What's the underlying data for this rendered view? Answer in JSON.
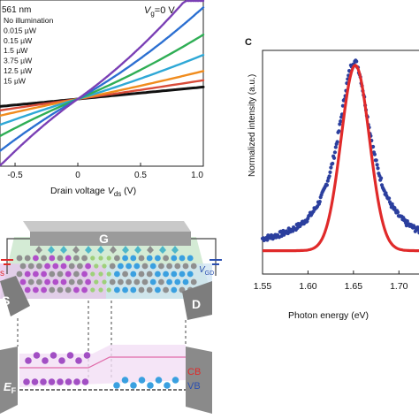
{
  "chart_data": [
    {
      "type": "line",
      "panel": "",
      "xlabel_prefix": "Drain voltage ",
      "xlabel_var": "V",
      "xlabel_sub": "ds",
      "xlabel_unit": " (V)",
      "ylabel": "",
      "xlim": [
        -0.5,
        1.0
      ],
      "x_ticks": [
        "-0.5",
        "0",
        "0.5",
        "1.0"
      ],
      "x_tick_values": [
        -0.5,
        0,
        0.5,
        1.0
      ],
      "annotations": {
        "wavelength": "561 nm",
        "gate_var": "V",
        "gate_sub": "g",
        "gate_value": "=0 V"
      },
      "series": [
        {
          "name": "No illumination",
          "color": "#111111",
          "slope": 0.115
        },
        {
          "name": "0.015 µW",
          "color": "#d94c3a",
          "slope": 0.17
        },
        {
          "name": "0.15 µW",
          "color": "#f08c1e",
          "slope": 0.24
        },
        {
          "name": "1.5 µW",
          "color": "#2ea8d6",
          "slope": 0.36
        },
        {
          "name": "3.75 µW",
          "color": "#2fae55",
          "slope": 0.5
        },
        {
          "name": "12.5 µW",
          "color": "#2b6fd1",
          "slope": 0.68
        },
        {
          "name": "15 µW",
          "color": "#7a3fb5",
          "slope": 0.85
        }
      ]
    },
    {
      "type": "line",
      "panel": "C",
      "xlabel": "Photon energy (eV)",
      "ylabel": "Normalized intensity (a.u.)",
      "xlim": [
        1.55,
        1.72
      ],
      "x_ticks": [
        "1.55",
        "1.60",
        "1.65",
        "1.70"
      ],
      "x_tick_values": [
        1.55,
        1.6,
        1.65,
        1.7
      ],
      "series": [
        {
          "name": "",
          "color": "#2b3f9e",
          "style": "dots",
          "peak": 1.651,
          "width": 0.022
        },
        {
          "name": "",
          "color": "#e02a2a",
          "style": "line",
          "peak": 1.652,
          "width": 0.02
        }
      ]
    }
  ],
  "diagram": {
    "gate_label": "G",
    "source_label": "S",
    "drain_label": "D",
    "vgd_var": "V",
    "vgd_sub": "GD",
    "left_partial_label": "s",
    "cb_label": "CB",
    "vb_label": "VB",
    "ef_label": "E",
    "ef_sub": "F"
  }
}
